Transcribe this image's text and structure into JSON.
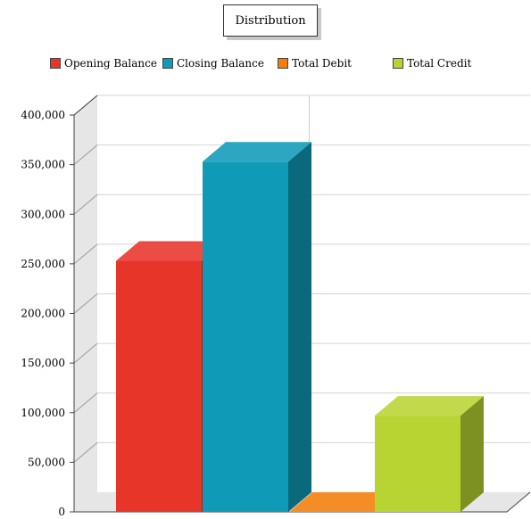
{
  "chart_data": {
    "type": "bar",
    "title": "Distribution",
    "xlabel": "",
    "ylabel": "",
    "ylim": [
      0,
      400000
    ],
    "yticks": [
      0,
      50000,
      100000,
      150000,
      200000,
      250000,
      300000,
      350000,
      400000
    ],
    "ytick_labels": [
      "0",
      "50,000",
      "100,000",
      "150,000",
      "200,000",
      "250,000",
      "300,000",
      "350,000",
      "400,000"
    ],
    "grid": true,
    "legend_position": "top",
    "style": "3d",
    "series": [
      {
        "name": "Opening Balance",
        "color": "#e8352a",
        "values": [
          253000
        ]
      },
      {
        "name": "Closing Balance",
        "color": "#0f9ab8",
        "values": [
          353000
        ]
      },
      {
        "name": "Total Debit",
        "color": "#f47d0a",
        "values": [
          0
        ]
      },
      {
        "name": "Total Credit",
        "color": "#b8d432",
        "values": [
          97000
        ]
      }
    ]
  }
}
